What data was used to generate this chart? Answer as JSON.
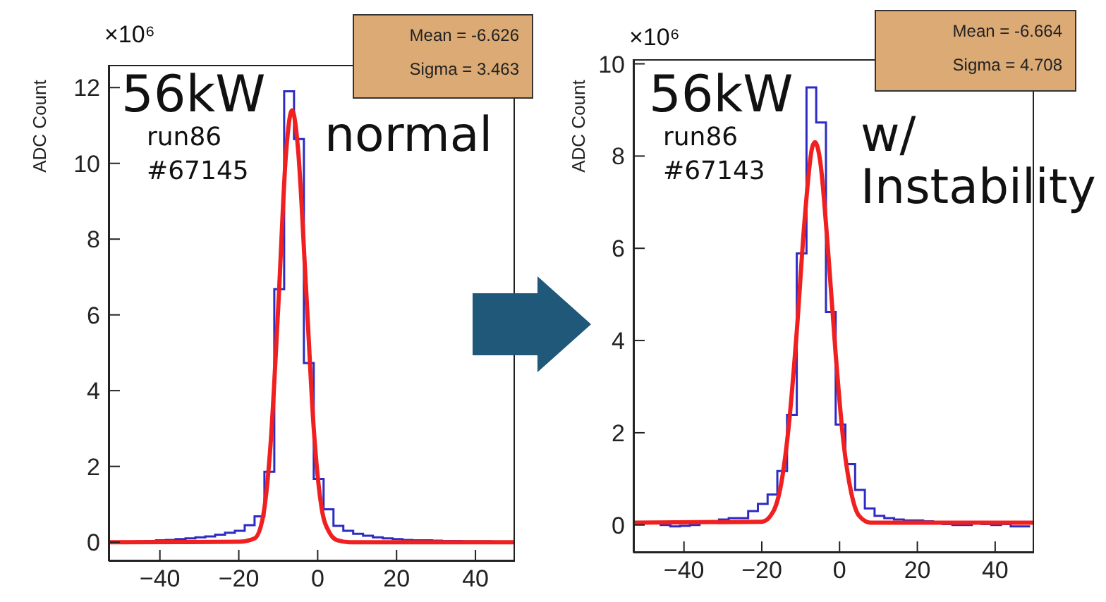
{
  "chart_data": [
    {
      "type": "histogram",
      "ylabel": "ADC Count",
      "bins": [
        -51,
        -48.5,
        -46,
        -43.5,
        -41,
        -38.5,
        -36,
        -33.5,
        -31,
        -28.5,
        -26,
        -23.5,
        -21,
        -18.5,
        -16,
        -13.5,
        -11,
        -8.5,
        -6,
        -3.5,
        -1,
        1.5,
        4,
        6.5,
        9,
        11.5,
        14,
        16.5,
        19,
        21.5,
        24,
        26.5,
        29,
        31.5,
        34,
        36.5,
        39,
        41.5,
        44,
        46.5,
        49
      ],
      "series": [
        {
          "color": "#2c2cc4",
          "values": [
            0,
            0,
            0.02,
            0.03,
            0.05,
            0.06,
            0.08,
            0.1,
            0.13,
            0.15,
            0.2,
            0.25,
            0.3,
            0.45,
            0.68,
            1.86,
            6.68,
            11.9,
            10.64,
            4.73,
            1.67,
            0.87,
            0.43,
            0.3,
            0.22,
            0.17,
            0.13,
            0.1,
            0.08,
            0.06,
            0.05,
            0.05,
            0.04,
            0.03,
            0.03,
            0.02,
            0.02,
            0.02,
            0.01,
            0.01
          ]
        },
        {
          "type": "line",
          "color": "#f02020",
          "x": [
            -53,
            -20,
            -16,
            -14,
            -12,
            -10,
            -8,
            -6.5,
            -5,
            -3,
            -1,
            1,
            3,
            5,
            8,
            50
          ],
          "values": [
            0,
            0.01,
            0.1,
            0.6,
            2.5,
            6.2,
            10.3,
            11.4,
            10.4,
            6.8,
            3,
            0.9,
            0.25,
            0.05,
            0,
            0
          ]
        }
      ],
      "xlim": [
        -53,
        50
      ],
      "xticks": [
        -40,
        -20,
        0,
        20,
        40
      ],
      "ylim": [
        -0.5,
        12.6
      ],
      "yticks": [
        0,
        2,
        4,
        6,
        8,
        10,
        12
      ],
      "annotations": [
        "×10⁶",
        "Mean = -6.626",
        "Sigma = 3.463",
        "56kW",
        "run86",
        "#67145",
        "normal"
      ]
    },
    {
      "type": "histogram",
      "ylabel": "ADC Count",
      "bins": [
        -51,
        -48.5,
        -46,
        -43.5,
        -41,
        -38.5,
        -36,
        -33.5,
        -31,
        -28.5,
        -26,
        -23.5,
        -21,
        -18.5,
        -16,
        -13.5,
        -11,
        -8.5,
        -6,
        -3.5,
        -1,
        1.5,
        4,
        6.5,
        9,
        11.5,
        14,
        16.5,
        19,
        21.5,
        24,
        26.5,
        29,
        31.5,
        34,
        36.5,
        39,
        41.5,
        44,
        46.5,
        49
      ],
      "series": [
        {
          "color": "#2c2cc4",
          "values": [
            0.05,
            0.05,
            0,
            -0.03,
            -0.02,
            0,
            0.05,
            0.08,
            0.12,
            0.15,
            0.15,
            0.3,
            0.46,
            0.66,
            1.17,
            2.39,
            5.89,
            9.49,
            8.73,
            4.62,
            2.18,
            1.32,
            0.76,
            0.36,
            0.2,
            0.15,
            0.12,
            0.1,
            0.1,
            0.08,
            0.06,
            0.02,
            0,
            0,
            0.05,
            0.02,
            0,
            0.02,
            -0.03,
            -0.03
          ]
        },
        {
          "type": "line",
          "color": "#f02020",
          "x": [
            -53,
            -20,
            -17,
            -15,
            -13,
            -11,
            -9,
            -7,
            -6.3,
            -5,
            -3,
            -1,
            1,
            3,
            5,
            8,
            50
          ],
          "values": [
            0.05,
            0.07,
            0.3,
            0.9,
            2.2,
            4.2,
            6.6,
            8.2,
            8.3,
            7.9,
            6,
            3.7,
            1.8,
            0.7,
            0.2,
            0.05,
            0.05
          ]
        }
      ],
      "xlim": [
        -53,
        50
      ],
      "xticks": [
        -40,
        -20,
        0,
        20,
        40
      ],
      "ylim": [
        -0.6,
        10.1
      ],
      "yticks": [
        0,
        2,
        4,
        6,
        8,
        10
      ],
      "annotations": [
        "×10⁶",
        "Mean = -6.664",
        "Sigma = 4.708",
        "56kW",
        "run86",
        "#67143",
        "w/ Instability"
      ]
    }
  ]
}
